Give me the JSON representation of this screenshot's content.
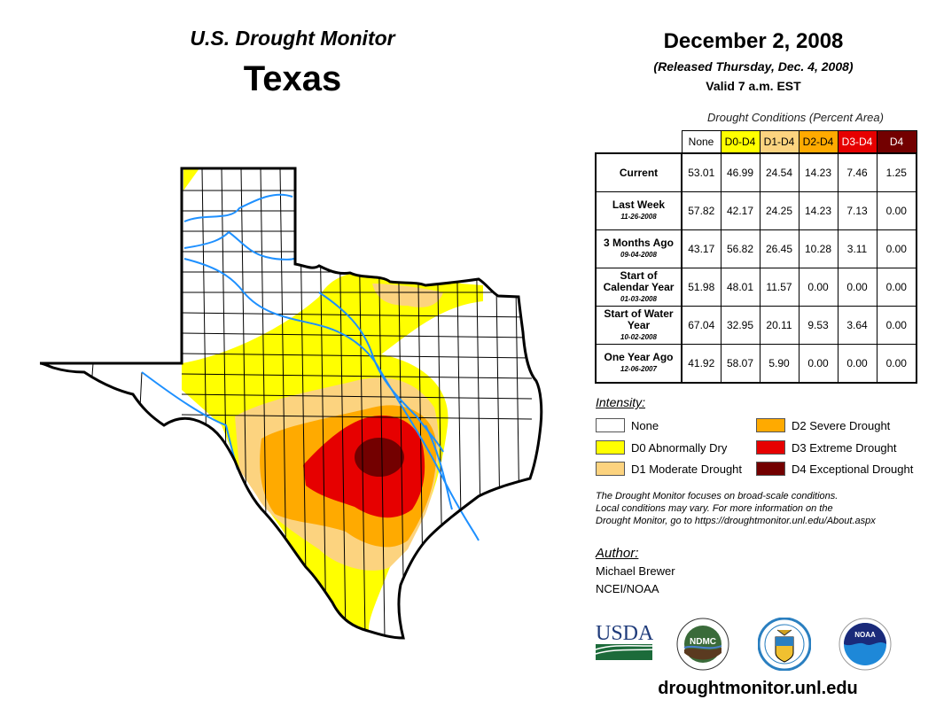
{
  "header": {
    "title": "U.S. Drought Monitor",
    "state": "Texas",
    "date": "December 2, 2008",
    "released": "(Released Thursday, Dec. 4, 2008)",
    "valid": "Valid 7 a.m. EST"
  },
  "table": {
    "caption": "Drought Conditions (Percent Area)",
    "columns": [
      {
        "label": "None",
        "bg": "#ffffff",
        "fg": "#000000"
      },
      {
        "label": "D0-D4",
        "bg": "#ffff00",
        "fg": "#000000"
      },
      {
        "label": "D1-D4",
        "bg": "#fcd37f",
        "fg": "#000000"
      },
      {
        "label": "D2-D4",
        "bg": "#ffaa00",
        "fg": "#000000"
      },
      {
        "label": "D3-D4",
        "bg": "#e60000",
        "fg": "#ffffff"
      },
      {
        "label": "D4",
        "bg": "#730000",
        "fg": "#ffffff"
      }
    ],
    "rows": [
      {
        "label": "Current",
        "date": "",
        "values": [
          "53.01",
          "46.99",
          "24.54",
          "14.23",
          "7.46",
          "1.25"
        ]
      },
      {
        "label": "Last Week",
        "date": "11-26-2008",
        "values": [
          "57.82",
          "42.17",
          "24.25",
          "14.23",
          "7.13",
          "0.00"
        ]
      },
      {
        "label": "3 Months Ago",
        "date": "09-04-2008",
        "values": [
          "43.17",
          "56.82",
          "26.45",
          "10.28",
          "3.11",
          "0.00"
        ]
      },
      {
        "label": "Start of Calendar Year",
        "date": "01-03-2008",
        "values": [
          "51.98",
          "48.01",
          "11.57",
          "0.00",
          "0.00",
          "0.00"
        ]
      },
      {
        "label": "Start of Water Year",
        "date": "10-02-2008",
        "values": [
          "67.04",
          "32.95",
          "20.11",
          "9.53",
          "3.64",
          "0.00"
        ]
      },
      {
        "label": "One Year Ago",
        "date": "12-06-2007",
        "values": [
          "41.92",
          "58.07",
          "5.90",
          "0.00",
          "0.00",
          "0.00"
        ]
      }
    ]
  },
  "legend": {
    "title": "Intensity:",
    "items": [
      {
        "label": "None",
        "color": "#ffffff"
      },
      {
        "label": "D0 Abnormally Dry",
        "color": "#ffff00"
      },
      {
        "label": "D1 Moderate Drought",
        "color": "#fcd37f"
      },
      {
        "label": "D2 Severe Drought",
        "color": "#ffaa00"
      },
      {
        "label": "D3 Extreme Drought",
        "color": "#e60000"
      },
      {
        "label": "D4 Exceptional Drought",
        "color": "#730000"
      }
    ]
  },
  "note": {
    "line1": "The Drought Monitor focuses on broad-scale conditions.",
    "line2": "Local conditions may vary. For more information on the",
    "line3": "Drought Monitor, go to https://droughtmonitor.unl.edu/About.aspx"
  },
  "author": {
    "title": "Author:",
    "name": "Michael Brewer",
    "org": "NCEI/NOAA"
  },
  "logos": {
    "usda": "USDA",
    "ndmc": "NDMC",
    "noaa": "NOAA"
  },
  "footer": {
    "url": "droughtmonitor.unl.edu"
  },
  "map": {
    "river_color": "#1e90ff",
    "border_color": "#000000"
  }
}
